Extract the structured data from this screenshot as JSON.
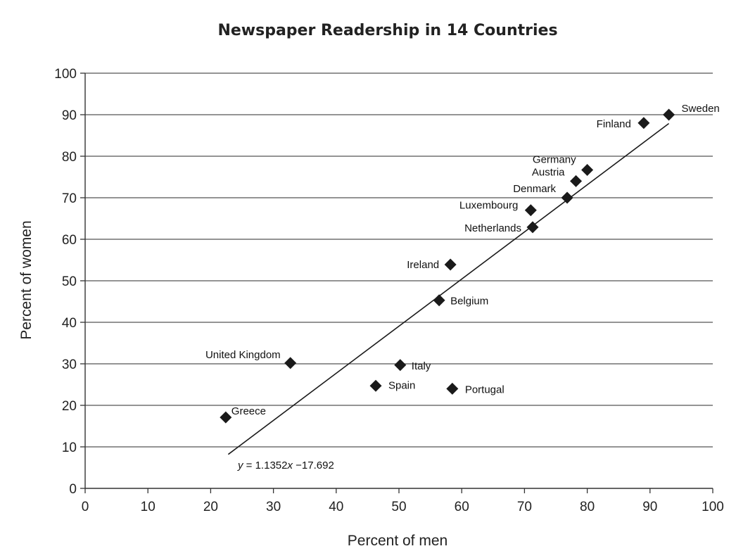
{
  "chart_data": {
    "type": "scatter",
    "title": "Newspaper Readership in 14 Countries",
    "xlabel": "Percent of men",
    "ylabel": "Percent of women",
    "xlim": [
      0,
      100
    ],
    "ylim": [
      0,
      100
    ],
    "x_ticks": [
      "0",
      "10",
      "20",
      "30",
      "40",
      "50",
      "60",
      "70",
      "80",
      "90",
      "100"
    ],
    "y_ticks": [
      "0",
      "10",
      "20",
      "30",
      "40",
      "50",
      "60",
      "70",
      "80",
      "90",
      "100"
    ],
    "grid": "horizontal",
    "points": [
      {
        "label": "Sweden",
        "x": 93.0,
        "y": 90.0
      },
      {
        "label": "Finland",
        "x": 89.0,
        "y": 88.0
      },
      {
        "label": "Germany",
        "x": 80.0,
        "y": 76.7
      },
      {
        "label": "Austria",
        "x": 78.2,
        "y": 74.0
      },
      {
        "label": "Denmark",
        "x": 76.8,
        "y": 70.0
      },
      {
        "label": "Luxembourg",
        "x": 71.0,
        "y": 67.0
      },
      {
        "label": "Netherlands",
        "x": 71.3,
        "y": 62.9
      },
      {
        "label": "Ireland",
        "x": 58.2,
        "y": 53.9
      },
      {
        "label": "Belgium",
        "x": 56.4,
        "y": 45.3
      },
      {
        "label": "United Kingdom",
        "x": 32.7,
        "y": 30.2
      },
      {
        "label": "Italy",
        "x": 50.2,
        "y": 29.7
      },
      {
        "label": "Spain",
        "x": 46.3,
        "y": 24.7
      },
      {
        "label": "Portugal",
        "x": 58.5,
        "y": 24.0
      },
      {
        "label": "Greece",
        "x": 22.4,
        "y": 17.1
      }
    ],
    "trendline": {
      "slope": 1.1352,
      "intercept": -17.692,
      "x_range": [
        22.8,
        93.0
      ],
      "equation_prefix": "y",
      "equation_mid": " = 1.1352",
      "equation_var": "x",
      "equation_suffix": " −17.692"
    },
    "marker": "diamond",
    "marker_color": "#1a1a1a",
    "line_color": "#1a1a1a"
  }
}
